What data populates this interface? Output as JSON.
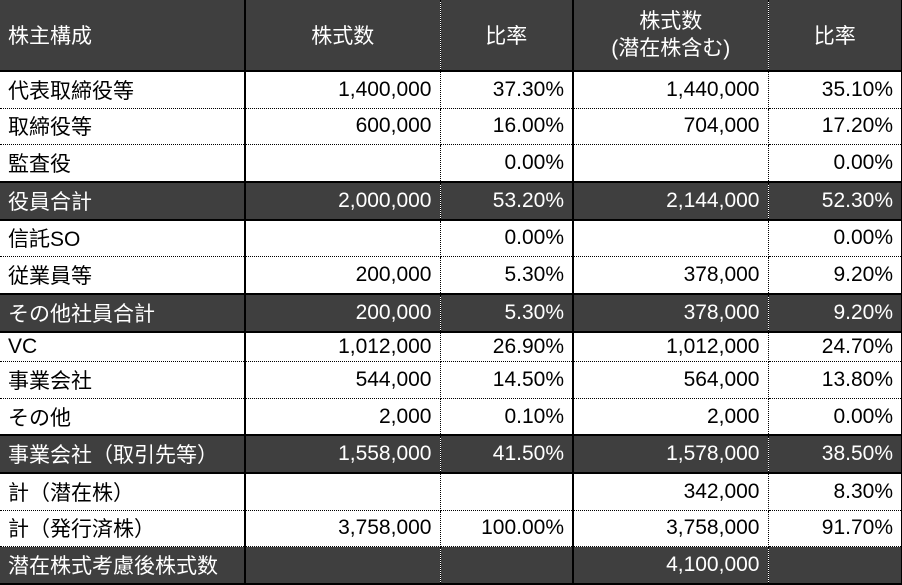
{
  "colors": {
    "dark_bg": "#3f3f3f",
    "dark_text": "#ffffff",
    "body_text": "#000000",
    "row_bg": "#ffffff"
  },
  "table": {
    "header": {
      "shareholder": "株主構成",
      "shares": "株式数",
      "ratio": "比率",
      "shares_potential_line1": "株式数",
      "shares_potential_line2": "(潜在株含む)",
      "ratio_potential": "比率"
    },
    "rows": [
      {
        "label": "代表取締役等",
        "shares": "1,400,000",
        "ratio": "37.30%",
        "shares_potential": "1,440,000",
        "ratio_potential": "35.10%",
        "style": "normal"
      },
      {
        "label": "取締役等",
        "shares": "600,000",
        "ratio": "16.00%",
        "shares_potential": "704,000",
        "ratio_potential": "17.20%",
        "style": "normal"
      },
      {
        "label": "監査役",
        "shares": "",
        "ratio": "0.00%",
        "shares_potential": "",
        "ratio_potential": "0.00%",
        "style": "normal"
      },
      {
        "label": "役員合計",
        "shares": "2,000,000",
        "ratio": "53.20%",
        "shares_potential": "2,144,000",
        "ratio_potential": "52.30%",
        "style": "total"
      },
      {
        "label": "信託SO",
        "shares": "",
        "ratio": "0.00%",
        "shares_potential": "",
        "ratio_potential": "0.00%",
        "style": "normal"
      },
      {
        "label": "従業員等",
        "shares": "200,000",
        "ratio": "5.30%",
        "shares_potential": "378,000",
        "ratio_potential": "9.20%",
        "style": "normal"
      },
      {
        "label": "その他社員合計",
        "shares": "200,000",
        "ratio": "5.30%",
        "shares_potential": "378,000",
        "ratio_potential": "9.20%",
        "style": "total"
      },
      {
        "label": "VC",
        "shares": "1,012,000",
        "ratio": "26.90%",
        "shares_potential": "1,012,000",
        "ratio_potential": "24.70%",
        "style": "normal"
      },
      {
        "label": "事業会社",
        "shares": "544,000",
        "ratio": "14.50%",
        "shares_potential": "564,000",
        "ratio_potential": "13.80%",
        "style": "normal"
      },
      {
        "label": "その他",
        "shares": "2,000",
        "ratio": "0.10%",
        "shares_potential": "2,000",
        "ratio_potential": "0.00%",
        "style": "normal"
      },
      {
        "label": "事業会社（取引先等）",
        "shares": "1,558,000",
        "ratio": "41.50%",
        "shares_potential": "1,578,000",
        "ratio_potential": "38.50%",
        "style": "total"
      },
      {
        "label": "計（潜在株）",
        "shares": "",
        "ratio": "",
        "shares_potential": "342,000",
        "ratio_potential": "8.30%",
        "style": "normal"
      },
      {
        "label": "計（発行済株）",
        "shares": "3,758,000",
        "ratio": "100.00%",
        "shares_potential": "3,758,000",
        "ratio_potential": "91.70%",
        "style": "normal"
      },
      {
        "label": "潜在株式考慮後株式数",
        "shares": "",
        "ratio": "",
        "shares_potential": "4,100,000",
        "ratio_potential": "",
        "style": "total"
      }
    ]
  }
}
